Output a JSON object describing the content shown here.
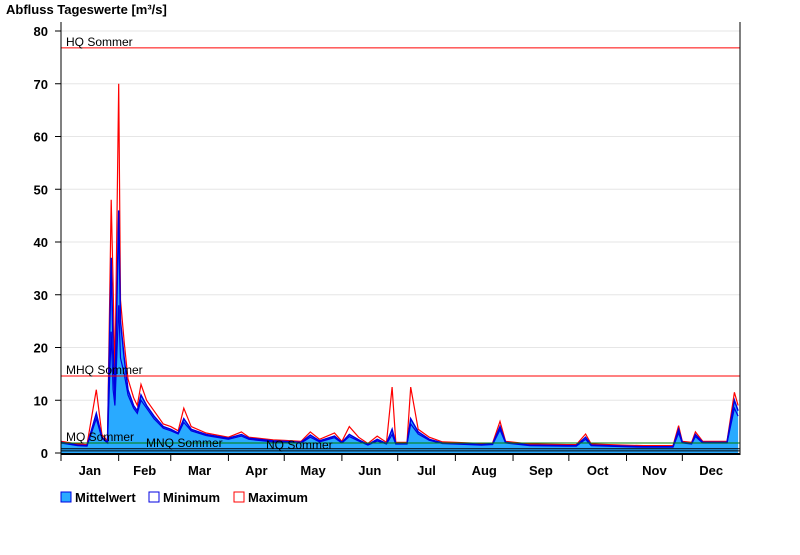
{
  "chart_data": {
    "type": "area",
    "title": "Abfluss Tageswerte [m³/s]",
    "xlabel": "",
    "ylabel": "",
    "ylim": [
      0,
      80
    ],
    "yticks": [
      0,
      10,
      20,
      30,
      40,
      50,
      60,
      70,
      80
    ],
    "grid": true,
    "legend_placement": "bottom-left",
    "months": [
      "Jan",
      "Feb",
      "Mar",
      "Apr",
      "May",
      "Jun",
      "Jul",
      "Aug",
      "Sep",
      "Oct",
      "Nov",
      "Dec"
    ],
    "dates": [
      "01-01",
      "01-10",
      "01-15",
      "01-20",
      "01-23",
      "01-26",
      "01-28",
      "01-29",
      "01-30",
      "02-01",
      "02-02",
      "02-04",
      "02-06",
      "02-09",
      "02-11",
      "02-13",
      "02-16",
      "02-20",
      "02-25",
      "03-01",
      "03-05",
      "03-08",
      "03-12",
      "03-20",
      "04-01",
      "04-08",
      "04-12",
      "04-25",
      "05-01",
      "05-10",
      "05-15",
      "05-20",
      "05-28",
      "06-01",
      "06-05",
      "06-10",
      "06-15",
      "06-20",
      "06-25",
      "06-28",
      "06-30",
      "07-06",
      "07-08",
      "07-12",
      "07-18",
      "07-25",
      "08-01",
      "08-15",
      "08-21",
      "08-25",
      "08-28",
      "09-10",
      "09-30",
      "10-05",
      "10-10",
      "10-13",
      "10-30",
      "11-10",
      "11-26",
      "11-29",
      "12-01",
      "12-06",
      "12-08",
      "12-12",
      "12-25",
      "12-29",
      "12-31"
    ],
    "series": [
      {
        "name": "Mittelwert",
        "color": "#29aaff",
        "line_color": "#0000e0",
        "values": [
          2.0,
          1.5,
          1.4,
          7.5,
          3.0,
          2.0,
          37,
          20,
          10,
          46,
          25,
          18,
          12,
          9,
          8,
          11,
          9,
          7,
          5,
          4.5,
          3.8,
          6.5,
          4.5,
          3.5,
          2.8,
          3.5,
          2.8,
          2.3,
          2.2,
          2.0,
          3.4,
          2.3,
          3.2,
          2.0,
          3.5,
          2.5,
          1.6,
          2.6,
          1.8,
          4.5,
          1.8,
          1.8,
          6.5,
          4,
          2.6,
          1.9,
          1.8,
          1.6,
          1.7,
          5,
          2,
          1.5,
          1.4,
          1.4,
          3.0,
          1.5,
          1.3,
          1.2,
          1.2,
          4.5,
          2,
          1.8,
          3.5,
          2.0,
          2.0,
          10,
          8
        ]
      },
      {
        "name": "Minimum",
        "color": "#0000e0",
        "values": [
          1.9,
          1.4,
          1.3,
          6.5,
          2.8,
          1.9,
          23,
          12,
          9,
          28,
          18,
          15,
          11,
          8.5,
          7.5,
          10,
          8.5,
          6.5,
          4.7,
          4.2,
          3.6,
          5.8,
          4.2,
          3.3,
          2.6,
          3.2,
          2.6,
          2.1,
          2.0,
          1.9,
          3.0,
          2.1,
          2.9,
          1.9,
          3.1,
          2.3,
          1.5,
          2.3,
          1.7,
          3.5,
          1.7,
          1.7,
          5.5,
          3.6,
          2.4,
          1.8,
          1.7,
          1.5,
          1.6,
          4.4,
          1.9,
          1.4,
          1.3,
          1.3,
          2.6,
          1.4,
          1.2,
          1.1,
          1.1,
          3.8,
          1.9,
          1.7,
          3.1,
          1.9,
          1.9,
          8.5,
          7
        ]
      },
      {
        "name": "Maximum",
        "color": "#ff0000",
        "values": [
          2.2,
          1.7,
          1.6,
          12,
          3.5,
          2.3,
          48,
          32,
          14,
          70,
          29,
          21,
          14,
          10.5,
          9,
          13,
          10,
          8,
          5.5,
          5,
          4.2,
          8.5,
          5,
          3.8,
          3.0,
          4.0,
          3.0,
          2.5,
          2.4,
          2.2,
          4.0,
          2.6,
          3.8,
          2.2,
          5,
          3,
          1.8,
          3.2,
          2.0,
          12.5,
          2.0,
          2.0,
          12.5,
          4.5,
          3,
          2.1,
          2,
          1.8,
          1.9,
          6,
          2.2,
          1.7,
          1.6,
          1.6,
          3.6,
          1.7,
          1.5,
          1.4,
          1.4,
          5.2,
          2.2,
          2.0,
          4,
          2.2,
          2.2,
          11.5,
          9
        ]
      }
    ],
    "reference_lines": [
      {
        "label": "HQ Sommer",
        "value": 76.8,
        "color": "#ff0000"
      },
      {
        "label": "MHQ Sommer",
        "value": 14.6,
        "color": "#ff0000"
      },
      {
        "label": "MQ Sommer",
        "value": 1.9,
        "color": "#008000"
      },
      {
        "label": "MNQ Sommer",
        "value": 0.8,
        "color": "#000000"
      },
      {
        "label": "NQ Sommer",
        "value": 0.4,
        "color": "#000000"
      }
    ]
  }
}
